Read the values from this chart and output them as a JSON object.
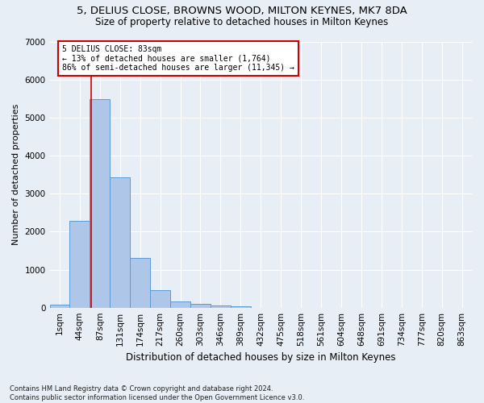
{
  "title_line1": "5, DELIUS CLOSE, BROWNS WOOD, MILTON KEYNES, MK7 8DA",
  "title_line2": "Size of property relative to detached houses in Milton Keynes",
  "xlabel": "Distribution of detached houses by size in Milton Keynes",
  "ylabel": "Number of detached properties",
  "footnote": "Contains HM Land Registry data © Crown copyright and database right 2024.\nContains public sector information licensed under the Open Government Licence v3.0.",
  "bar_labels": [
    "1sqm",
    "44sqm",
    "87sqm",
    "131sqm",
    "174sqm",
    "217sqm",
    "260sqm",
    "303sqm",
    "346sqm",
    "389sqm",
    "432sqm",
    "475sqm",
    "518sqm",
    "561sqm",
    "604sqm",
    "648sqm",
    "691sqm",
    "734sqm",
    "777sqm",
    "820sqm",
    "863sqm"
  ],
  "bar_values": [
    80,
    2280,
    5480,
    3430,
    1310,
    460,
    160,
    95,
    60,
    30,
    0,
    0,
    0,
    0,
    0,
    0,
    0,
    0,
    0,
    0,
    0
  ],
  "bar_color": "#aec6e8",
  "bar_edge_color": "#5b9bd5",
  "annotation_box_text": "5 DELIUS CLOSE: 83sqm\n← 13% of detached houses are smaller (1,764)\n86% of semi-detached houses are larger (11,345) →",
  "annotation_box_color": "#ffffff",
  "annotation_box_edge_color": "#cc0000",
  "annotation_text_color": "#000000",
  "red_line_x": 1.57,
  "ylim": [
    0,
    7000
  ],
  "yticks": [
    0,
    1000,
    2000,
    3000,
    4000,
    5000,
    6000,
    7000
  ],
  "bg_color": "#e8eef5",
  "grid_color": "#ffffff",
  "title_fontsize": 9.5,
  "subtitle_fontsize": 8.5,
  "xlabel_fontsize": 8.5,
  "ylabel_fontsize": 8.0,
  "tick_fontsize": 7.5,
  "footnote_fontsize": 6.0
}
